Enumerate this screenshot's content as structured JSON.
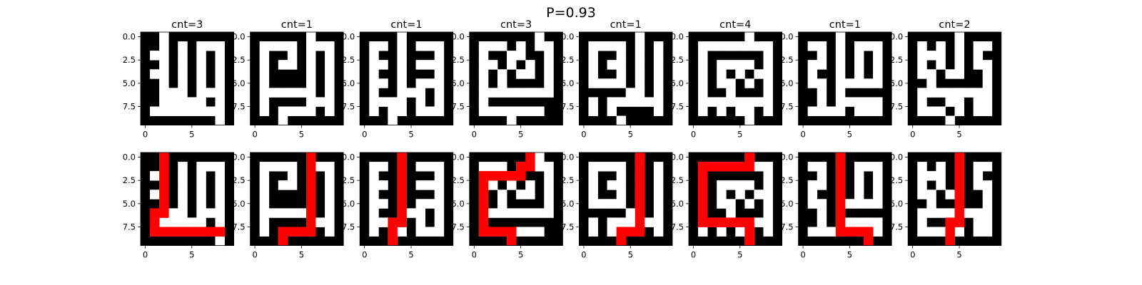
{
  "figure": {
    "suptitle": "P=0.93"
  },
  "colors": {
    "wall": "#000000",
    "open": "#ffffff",
    "path": "#ff0000",
    "text": "#000000"
  },
  "chart_data": {
    "type": "heatmap",
    "title": "P=0.93",
    "grid": false,
    "rows": 2,
    "cols": 8,
    "value_legend": {
      "0": "wall (black)",
      "1": "open cell (white)",
      "2": "path (red)"
    },
    "xlim": [
      -0.5,
      9.5
    ],
    "ylim": [
      9.5,
      -0.5
    ],
    "xticks": [
      0,
      5
    ],
    "yticks": [
      "0.0",
      "2.5",
      "5.0",
      "7.5"
    ],
    "panels": [
      {
        "title": "cnt=3",
        "maze": [
          "0010000000",
          "0010101110",
          "0110101010",
          "0010101010",
          "0110101010",
          "0010101010",
          "0011101110",
          "0011111010",
          "0111111110",
          "0000000010"
        ],
        "path": [
          [
            0,
            2
          ],
          [
            1,
            2
          ],
          [
            2,
            2
          ],
          [
            3,
            2
          ],
          [
            4,
            2
          ],
          [
            5,
            2
          ],
          [
            6,
            2
          ],
          [
            6,
            1
          ],
          [
            7,
            1
          ],
          [
            8,
            1
          ],
          [
            8,
            2
          ],
          [
            8,
            3
          ],
          [
            8,
            4
          ],
          [
            8,
            5
          ],
          [
            8,
            6
          ],
          [
            8,
            7
          ],
          [
            8,
            8
          ]
        ]
      },
      {
        "title": "cnt=1",
        "maze": [
          "0000001000",
          "0111101110",
          "0100101010",
          "0101101010",
          "0100001010",
          "0100001010",
          "0111111010",
          "0100001110",
          "0101111010",
          "0001000000"
        ],
        "path": [
          [
            0,
            6
          ],
          [
            1,
            6
          ],
          [
            2,
            6
          ],
          [
            3,
            6
          ],
          [
            4,
            6
          ],
          [
            5,
            6
          ],
          [
            6,
            6
          ],
          [
            7,
            6
          ],
          [
            8,
            6
          ],
          [
            8,
            5
          ],
          [
            8,
            4
          ],
          [
            8,
            3
          ],
          [
            9,
            3
          ]
        ]
      },
      {
        "title": "cnt=1",
        "maze": [
          "0000100000",
          "0110101110",
          "0100100010",
          "0110101110",
          "0100100010",
          "0110101110",
          "0100111010",
          "0111101010",
          "0101101110",
          "0001000000"
        ],
        "path": [
          [
            0,
            4
          ],
          [
            1,
            4
          ],
          [
            2,
            4
          ],
          [
            3,
            4
          ],
          [
            4,
            4
          ],
          [
            5,
            4
          ],
          [
            6,
            4
          ],
          [
            7,
            4
          ],
          [
            7,
            3
          ],
          [
            8,
            3
          ],
          [
            9,
            3
          ]
        ]
      },
      {
        "title": "cnt=3",
        "maze": [
          "0000000100",
          "0111010110",
          "0100110010",
          "0110101010",
          "0101011010",
          "0101000010",
          "0111111110",
          "0100000000",
          "0111111100",
          "0000100000"
        ],
        "path": [
          [
            0,
            6
          ],
          [
            1,
            6
          ],
          [
            1,
            5
          ],
          [
            2,
            5
          ],
          [
            2,
            4
          ],
          [
            2,
            3
          ],
          [
            2,
            2
          ],
          [
            2,
            1
          ],
          [
            3,
            1
          ],
          [
            4,
            1
          ],
          [
            5,
            1
          ],
          [
            6,
            1
          ],
          [
            7,
            1
          ],
          [
            8,
            1
          ],
          [
            8,
            2
          ],
          [
            8,
            3
          ],
          [
            8,
            4
          ],
          [
            9,
            4
          ]
        ]
      },
      {
        "title": "cnt=1",
        "maze": [
          "0000001000",
          "0111101010",
          "0100101010",
          "0101101010",
          "0100101010",
          "0111101010",
          "0000011010",
          "0101111110",
          "0101000010",
          "0000100000"
        ],
        "path": [
          [
            0,
            6
          ],
          [
            1,
            6
          ],
          [
            2,
            6
          ],
          [
            3,
            6
          ],
          [
            4,
            6
          ],
          [
            5,
            6
          ],
          [
            6,
            6
          ],
          [
            7,
            6
          ],
          [
            8,
            6
          ],
          [
            8,
            5
          ],
          [
            8,
            4
          ],
          [
            9,
            4
          ]
        ]
      },
      {
        "title": "cnt=4",
        "maze": [
          "0000001000",
          "0111111110",
          "0100000010",
          "0101111010",
          "0101010110",
          "0101101010",
          "0100100010",
          "0111111110",
          "0101011010",
          "0000001000"
        ],
        "path": [
          [
            0,
            6
          ],
          [
            1,
            6
          ],
          [
            1,
            5
          ],
          [
            1,
            4
          ],
          [
            1,
            3
          ],
          [
            1,
            2
          ],
          [
            1,
            1
          ],
          [
            2,
            1
          ],
          [
            3,
            1
          ],
          [
            4,
            1
          ],
          [
            5,
            1
          ],
          [
            6,
            1
          ],
          [
            7,
            1
          ],
          [
            7,
            2
          ],
          [
            7,
            3
          ],
          [
            7,
            4
          ],
          [
            7,
            5
          ],
          [
            7,
            6
          ],
          [
            8,
            6
          ],
          [
            9,
            6
          ]
        ]
      },
      {
        "title": "cnt=1",
        "maze": [
          "0000100000",
          "0110101110",
          "0010101010",
          "0110101010",
          "0100101010",
          "0110111110",
          "0010100000",
          "0010111110",
          "0111101110",
          "0000000000"
        ],
        "path": [
          [
            0,
            4
          ],
          [
            1,
            4
          ],
          [
            2,
            4
          ],
          [
            3,
            4
          ],
          [
            4,
            4
          ],
          [
            5,
            4
          ],
          [
            6,
            4
          ],
          [
            7,
            4
          ],
          [
            8,
            4
          ],
          [
            8,
            5
          ],
          [
            8,
            6
          ],
          [
            8,
            7
          ],
          [
            9,
            7
          ]
        ]
      },
      {
        "title": "cnt=2",
        "maze": [
          "0000010000",
          "0101010110",
          "0111010100",
          "0101010110",
          "0110110010",
          "0010000010",
          "0111111110",
          "0100110110",
          "0111010110",
          "0000100000"
        ],
        "path": [
          [
            0,
            5
          ],
          [
            1,
            5
          ],
          [
            2,
            5
          ],
          [
            3,
            5
          ],
          [
            4,
            5
          ],
          [
            5,
            5
          ],
          [
            6,
            5
          ],
          [
            7,
            5
          ],
          [
            7,
            4
          ],
          [
            8,
            4
          ],
          [
            9,
            4
          ]
        ]
      }
    ]
  }
}
